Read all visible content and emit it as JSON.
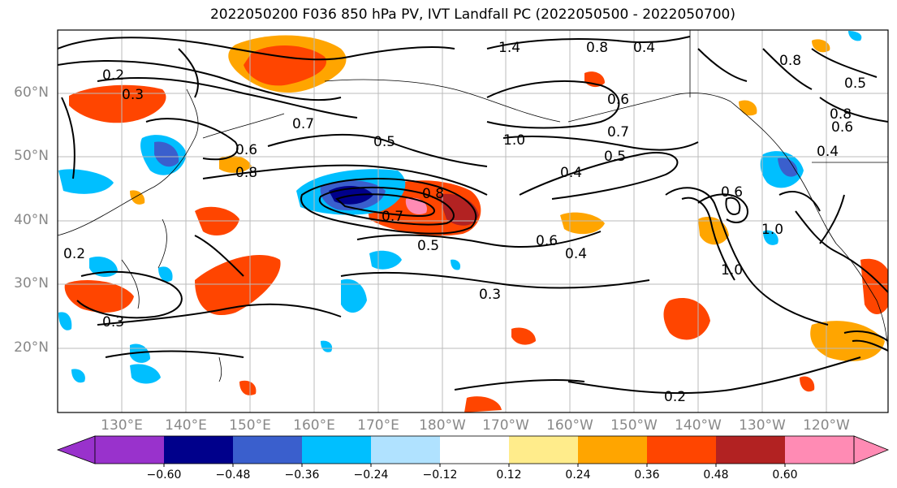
{
  "title": "2022050200 F036 850 hPa PV, IVT Landfall PC (2022050500 - 2022050700)",
  "map": {
    "lat_labels": [
      "60°N",
      "50°N",
      "40°N",
      "30°N",
      "20°N"
    ],
    "lon_labels": [
      "130°E",
      "140°E",
      "150°E",
      "160°E",
      "170°E",
      "180°W",
      "170°W",
      "160°W",
      "150°W",
      "140°W",
      "130°W",
      "120°W"
    ],
    "contour_labels": [
      "1.4",
      "0.8",
      "0.4",
      "0.8",
      "0.5",
      "0.3",
      "0.2",
      "0.6",
      "0.7",
      "1.0",
      "0.5",
      "0.7",
      "0.5",
      "0.4",
      "0.8",
      "0.6",
      "0.7",
      "0.8",
      "0.5",
      "0.6",
      "0.4",
      "0.3",
      "0.2",
      "0.3",
      "0.6",
      "1.0",
      "1.0",
      "0.2",
      "0.8",
      "0.6",
      "0.4"
    ]
  },
  "colorbar": {
    "tick_labels": [
      "−0.60",
      "−0.48",
      "−0.36",
      "−0.24",
      "−0.12",
      "0.12",
      "0.24",
      "0.36",
      "0.48",
      "0.60"
    ],
    "colors": [
      "#9932CC",
      "#00008B",
      "#3A5FCD",
      "#00BFFF",
      "#B0E2FF",
      "#FFFFFF",
      "#FFEC8B",
      "#FFA500",
      "#FF4500",
      "#B22222",
      "#FF8BB4"
    ]
  }
}
